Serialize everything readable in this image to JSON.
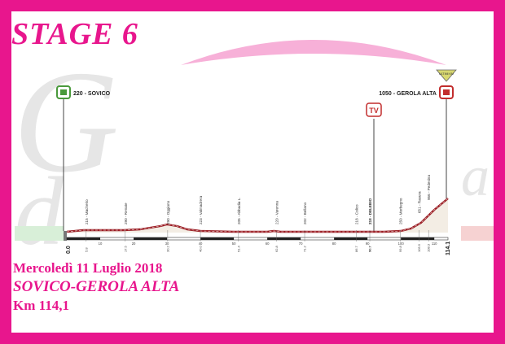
{
  "title": "STAGE 6",
  "info": {
    "date": "Mercoledì 11 Luglio 2018",
    "route": "SOVICO-GEROLA ALTA",
    "distance": "Km 114,1"
  },
  "start": {
    "label": "220 - SOVICO"
  },
  "finish": {
    "label": "1050 - GEROLA ALTA",
    "banner": "ULTIMI KM"
  },
  "tv_label": "TV",
  "km_start": "0.0",
  "km_end": "114.1",
  "places": [
    {
      "name": "215 - Macherio"
    },
    {
      "name": "290 - Renate"
    },
    {
      "name": "290 - Oggiono"
    },
    {
      "name": "223 - Valmadrera"
    },
    {
      "name": "205 - Abbadia L."
    },
    {
      "name": "220 - Varenna"
    },
    {
      "name": "202 - Bellano"
    },
    {
      "name": "218 - Colico"
    },
    {
      "name": "218 - DELEBIO"
    },
    {
      "name": "250 - Morbegno"
    },
    {
      "name": "651 - Rasura"
    },
    {
      "name": "956 - Pedesina"
    }
  ],
  "km_ticks": [
    "10",
    "20",
    "30",
    "40",
    "50",
    "60",
    "70",
    "80",
    "90",
    "100",
    "110"
  ],
  "place_kms": [
    "5.8",
    "17.5",
    "30.2",
    "40.0",
    "51.4",
    "62.8",
    "71.2",
    "86.7",
    "90.7",
    "99.8",
    "105.5",
    "108.3"
  ],
  "colors": {
    "accent": "#e8168d",
    "profile_line": "#9a1b22",
    "profile_fill": "#f3ede4"
  }
}
